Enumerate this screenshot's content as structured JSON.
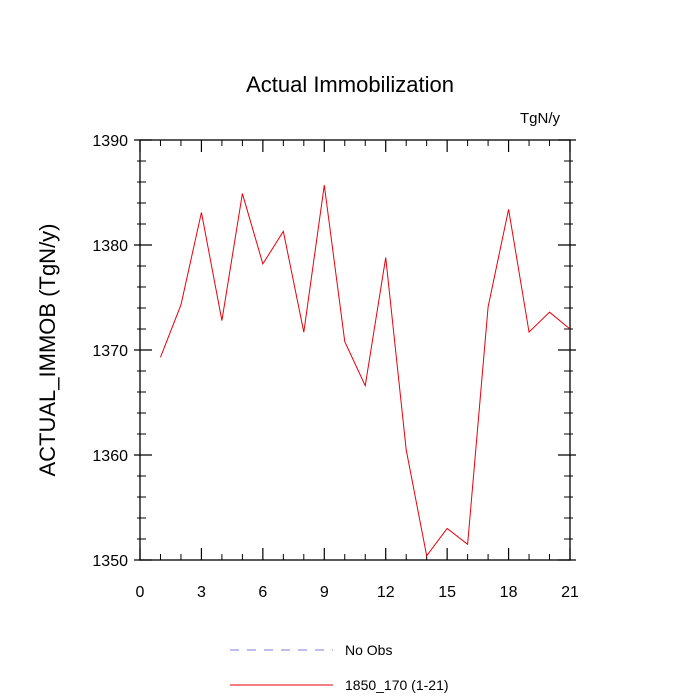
{
  "chart_data": {
    "type": "line",
    "title": "Actual Immobilization",
    "units_label": "TgN/y",
    "ylabel": "ACTUAL_IMMOB  (TgN/y)",
    "xlabel": "",
    "xlim": [
      0,
      21
    ],
    "ylim": [
      1350,
      1390
    ],
    "x_ticks": [
      0,
      3,
      6,
      9,
      12,
      15,
      18,
      21
    ],
    "y_ticks": [
      1350,
      1360,
      1370,
      1380,
      1390
    ],
    "x_minor_step": 1,
    "y_minor_step": 2,
    "grid": false,
    "legend_position": "bottom-center",
    "series": [
      {
        "name": "No Obs",
        "style": "dashed",
        "color": "#7b7bdc",
        "x": [],
        "values": []
      },
      {
        "name": "1850_170 (1-21)",
        "style": "solid",
        "color": "#e8000b",
        "x": [
          1,
          2,
          3,
          4,
          5,
          6,
          7,
          8,
          9,
          10,
          11,
          12,
          13,
          14,
          15,
          16,
          17,
          18,
          19,
          20,
          21
        ],
        "values": [
          1369.3,
          1374.3,
          1383.1,
          1372.8,
          1384.9,
          1378.2,
          1381.3,
          1371.7,
          1385.7,
          1370.8,
          1366.6,
          1378.8,
          1360.5,
          1350.4,
          1353.0,
          1351.5,
          1374.1,
          1383.4,
          1371.7,
          1373.6,
          1372.0
        ]
      }
    ]
  }
}
